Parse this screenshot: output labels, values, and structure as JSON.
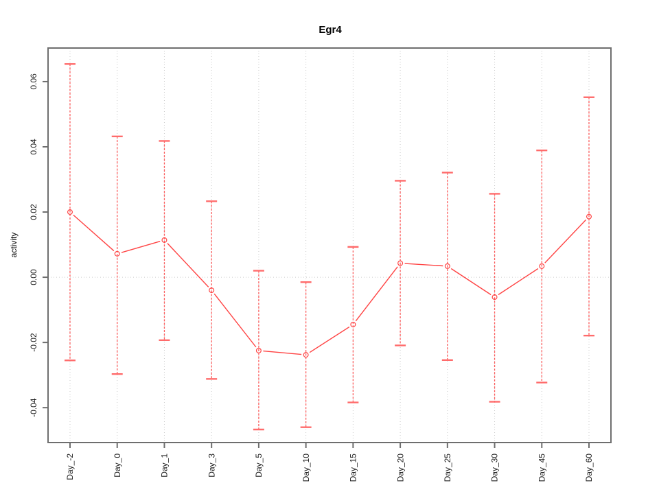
{
  "chart_data": {
    "type": "line",
    "title": "Egr4",
    "xlabel": "",
    "ylabel": "activity",
    "categories": [
      "Day_-2",
      "Day_0",
      "Day_1",
      "Day_3",
      "Day_5",
      "Day_10",
      "Day_15",
      "Day_20",
      "Day_25",
      "Day_30",
      "Day_45",
      "Day_60"
    ],
    "series": [
      {
        "name": "activity mean with error bars",
        "values": [
          0.02,
          0.0072,
          0.0114,
          -0.004,
          -0.0225,
          -0.0238,
          -0.0145,
          0.0043,
          0.0034,
          -0.0061,
          0.0034,
          0.0186
        ],
        "upper": [
          0.0654,
          0.0432,
          0.0418,
          0.0233,
          0.002,
          -0.0015,
          0.0093,
          0.0296,
          0.0321,
          0.0256,
          0.0389,
          0.0552
        ],
        "lower": [
          -0.0255,
          -0.0297,
          -0.0193,
          -0.0312,
          -0.0467,
          -0.046,
          -0.0384,
          -0.0209,
          -0.0254,
          -0.0382,
          -0.0323,
          -0.0179
        ]
      }
    ],
    "yticks": [
      -0.04,
      -0.02,
      0.0,
      0.02,
      0.04,
      0.06
    ],
    "ytick_labels": [
      "-0.04",
      "-0.02",
      "0.00",
      "0.02",
      "0.04",
      "0.06"
    ],
    "ylim": [
      -0.0507,
      0.0703
    ],
    "grid": "dotted vertical line at each category; dotted horizontal line at y=0",
    "legend": "none",
    "marker": "open-circle",
    "colors": {
      "series": "#ff4343",
      "error_bar": "#ff6b6b",
      "box": "#6e6e6e",
      "grid": "#c9c9c9",
      "text": "#1c1c1c",
      "background": "#ffffff"
    }
  }
}
